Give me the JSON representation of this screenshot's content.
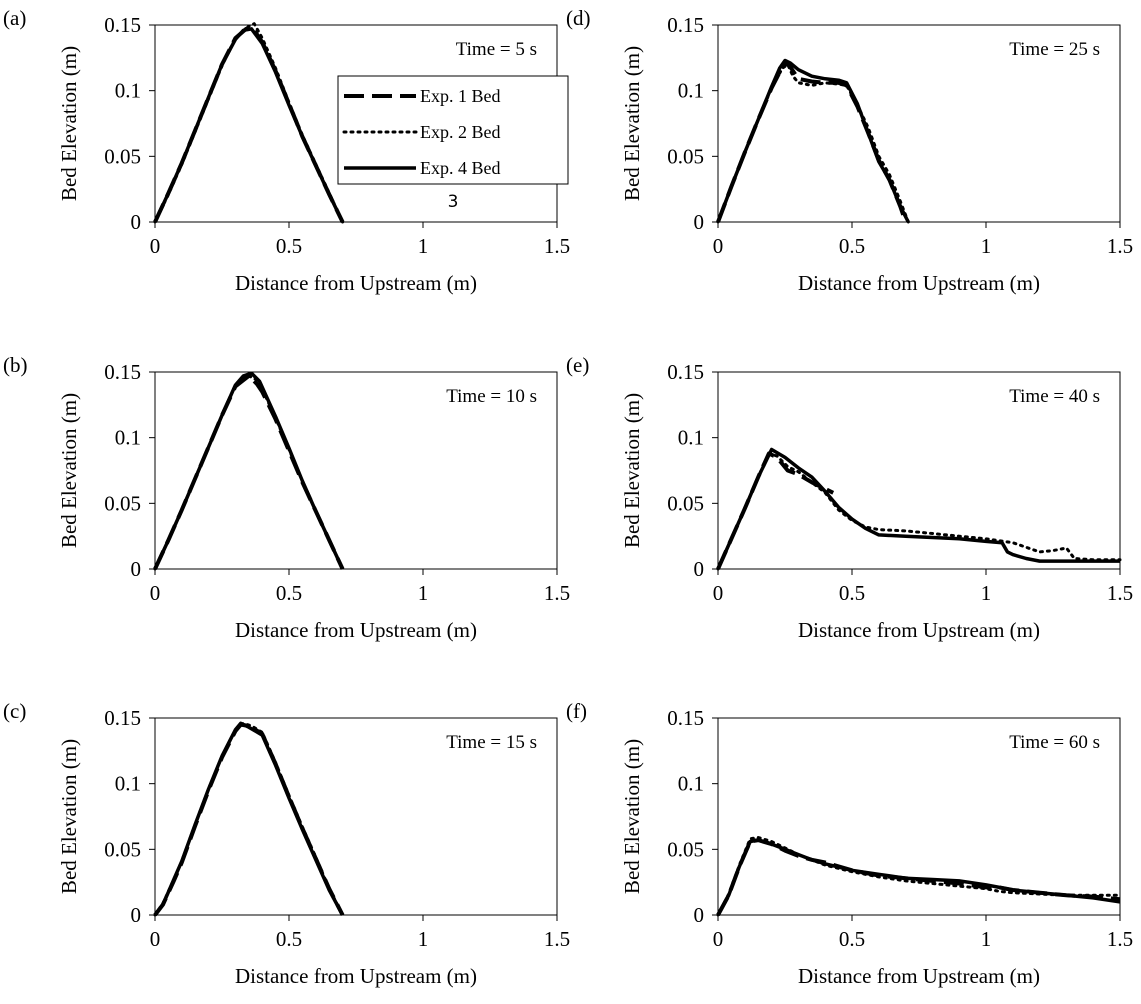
{
  "series_styles": [
    {
      "key": "exp1",
      "stroke": "#000000",
      "width": 4,
      "dash": "20,8"
    },
    {
      "key": "exp2",
      "stroke": "#000000",
      "width": 3,
      "dash": "2,5"
    },
    {
      "key": "exp4",
      "stroke": "#000000",
      "width": 3.5,
      "dash": ""
    }
  ],
  "legend": {
    "entries": [
      "Exp. 1 Bed",
      "Exp. 2 Bed",
      "Exp. 4 Bed"
    ],
    "stray_label": "3"
  },
  "chart_data": [
    {
      "type": "line",
      "panel_letter": "(a)",
      "annotation": "Time = 5 s",
      "xlabel": "Distance from Upstream (m)",
      "ylabel": "Bed Elevation (m)",
      "xlim": [
        0,
        1.5
      ],
      "ylim": [
        0,
        0.15
      ],
      "xticks": [
        "0",
        "0.5",
        "1",
        "1.5"
      ],
      "yticks": [
        "0",
        "0.05",
        "0.1",
        "0.15"
      ],
      "series": [
        {
          "name": "Exp. 1 Bed",
          "x": [
            0,
            0.05,
            0.1,
            0.15,
            0.2,
            0.25,
            0.3,
            0.34,
            0.37,
            0.4,
            0.45,
            0.5,
            0.55,
            0.6,
            0.65,
            0.7
          ],
          "y": [
            0,
            0.022,
            0.045,
            0.07,
            0.095,
            0.12,
            0.14,
            0.147,
            0.146,
            0.137,
            0.115,
            0.09,
            0.065,
            0.043,
            0.021,
            0
          ]
        },
        {
          "name": "Exp. 2 Bed",
          "x": [
            0,
            0.05,
            0.1,
            0.15,
            0.2,
            0.25,
            0.3,
            0.35,
            0.37,
            0.4,
            0.45,
            0.5,
            0.55,
            0.6,
            0.65,
            0.7
          ],
          "y": [
            0,
            0.021,
            0.044,
            0.069,
            0.094,
            0.119,
            0.14,
            0.149,
            0.151,
            0.14,
            0.117,
            0.091,
            0.066,
            0.044,
            0.022,
            0
          ]
        },
        {
          "name": "Exp. 4 Bed",
          "x": [
            0,
            0.05,
            0.1,
            0.15,
            0.2,
            0.25,
            0.3,
            0.33,
            0.36,
            0.4,
            0.45,
            0.5,
            0.55,
            0.6,
            0.65,
            0.7
          ],
          "y": [
            0,
            0.022,
            0.045,
            0.07,
            0.095,
            0.12,
            0.139,
            0.146,
            0.147,
            0.136,
            0.114,
            0.089,
            0.065,
            0.043,
            0.021,
            0
          ]
        }
      ]
    },
    {
      "type": "line",
      "panel_letter": "(b)",
      "annotation": "Time = 10 s",
      "xlabel": "Distance from Upstream (m)",
      "ylabel": "Bed Elevation (m)",
      "xlim": [
        0,
        1.5
      ],
      "ylim": [
        0,
        0.15
      ],
      "xticks": [
        "0",
        "0.5",
        "1",
        "1.5"
      ],
      "yticks": [
        "0",
        "0.05",
        "0.1",
        "0.15"
      ],
      "series": [
        {
          "name": "Exp. 1 Bed",
          "x": [
            0,
            0.05,
            0.1,
            0.15,
            0.2,
            0.25,
            0.3,
            0.35,
            0.38,
            0.4,
            0.45,
            0.5,
            0.55,
            0.6,
            0.65,
            0.7
          ],
          "y": [
            0,
            0.022,
            0.045,
            0.069,
            0.093,
            0.117,
            0.139,
            0.147,
            0.141,
            0.135,
            0.114,
            0.09,
            0.066,
            0.044,
            0.022,
            0
          ]
        },
        {
          "name": "Exp. 2 Bed",
          "x": [
            0,
            0.05,
            0.1,
            0.15,
            0.2,
            0.25,
            0.3,
            0.35,
            0.38,
            0.4,
            0.45,
            0.5,
            0.55,
            0.6,
            0.65,
            0.7
          ],
          "y": [
            0,
            0.022,
            0.045,
            0.069,
            0.093,
            0.117,
            0.14,
            0.147,
            0.144,
            0.137,
            0.115,
            0.091,
            0.067,
            0.044,
            0.022,
            0
          ]
        },
        {
          "name": "Exp. 4 Bed",
          "x": [
            0,
            0.05,
            0.1,
            0.15,
            0.2,
            0.25,
            0.3,
            0.33,
            0.36,
            0.39,
            0.45,
            0.5,
            0.55,
            0.6,
            0.65,
            0.7
          ],
          "y": [
            0,
            0.022,
            0.045,
            0.069,
            0.093,
            0.117,
            0.14,
            0.147,
            0.149,
            0.143,
            0.116,
            0.092,
            0.067,
            0.044,
            0.022,
            0
          ]
        }
      ]
    },
    {
      "type": "line",
      "panel_letter": "(c)",
      "annotation": "Time = 15 s",
      "xlabel": "Distance from Upstream (m)",
      "ylabel": "Bed Elevation (m)",
      "xlim": [
        0,
        1.5
      ],
      "ylim": [
        0,
        0.15
      ],
      "xticks": [
        "0",
        "0.5",
        "1",
        "1.5"
      ],
      "yticks": [
        "0",
        "0.05",
        "0.1",
        "0.15"
      ],
      "series": [
        {
          "name": "Exp. 1 Bed",
          "x": [
            0,
            0.03,
            0.07,
            0.1,
            0.15,
            0.2,
            0.25,
            0.3,
            0.32,
            0.35,
            0.4,
            0.45,
            0.5,
            0.55,
            0.6,
            0.65,
            0.7
          ],
          "y": [
            0,
            0.008,
            0.026,
            0.04,
            0.068,
            0.095,
            0.12,
            0.14,
            0.145,
            0.144,
            0.138,
            0.115,
            0.09,
            0.066,
            0.043,
            0.02,
            0
          ]
        },
        {
          "name": "Exp. 2 Bed",
          "x": [
            0,
            0.03,
            0.07,
            0.1,
            0.15,
            0.2,
            0.25,
            0.3,
            0.33,
            0.36,
            0.4,
            0.45,
            0.5,
            0.55,
            0.6,
            0.65,
            0.7
          ],
          "y": [
            0,
            0.009,
            0.027,
            0.041,
            0.069,
            0.096,
            0.121,
            0.141,
            0.146,
            0.144,
            0.139,
            0.116,
            0.091,
            0.067,
            0.044,
            0.02,
            0
          ]
        },
        {
          "name": "Exp. 4 Bed",
          "x": [
            0,
            0.03,
            0.07,
            0.1,
            0.15,
            0.2,
            0.25,
            0.3,
            0.32,
            0.35,
            0.4,
            0.45,
            0.5,
            0.55,
            0.6,
            0.65,
            0.7
          ],
          "y": [
            0,
            0.008,
            0.027,
            0.041,
            0.069,
            0.096,
            0.121,
            0.141,
            0.146,
            0.143,
            0.137,
            0.114,
            0.089,
            0.065,
            0.042,
            0.019,
            0
          ]
        }
      ]
    },
    {
      "type": "line",
      "panel_letter": "(d)",
      "annotation": "Time = 25 s",
      "xlabel": "Distance from Upstream (m)",
      "ylabel": "Bed Elevation (m)",
      "xlim": [
        0,
        1.5
      ],
      "ylim": [
        0,
        0.15
      ],
      "xticks": [
        "0",
        "0.5",
        "1",
        "1.5"
      ],
      "yticks": [
        "0",
        "0.05",
        "0.1",
        "0.15"
      ],
      "series": [
        {
          "name": "Exp. 1 Bed",
          "x": [
            0,
            0.05,
            0.1,
            0.15,
            0.2,
            0.24,
            0.26,
            0.28,
            0.3,
            0.35,
            0.4,
            0.45,
            0.48,
            0.52,
            0.56,
            0.6,
            0.64,
            0.68,
            0.7
          ],
          "y": [
            0,
            0.027,
            0.053,
            0.078,
            0.102,
            0.118,
            0.121,
            0.115,
            0.109,
            0.107,
            0.106,
            0.106,
            0.104,
            0.088,
            0.068,
            0.047,
            0.032,
            0.012,
            0
          ]
        },
        {
          "name": "Exp. 2 Bed",
          "x": [
            0,
            0.05,
            0.1,
            0.15,
            0.2,
            0.24,
            0.26,
            0.28,
            0.3,
            0.35,
            0.4,
            0.45,
            0.48,
            0.52,
            0.56,
            0.6,
            0.64,
            0.68,
            0.71
          ],
          "y": [
            0,
            0.027,
            0.053,
            0.078,
            0.102,
            0.117,
            0.12,
            0.111,
            0.106,
            0.104,
            0.106,
            0.105,
            0.104,
            0.089,
            0.072,
            0.05,
            0.036,
            0.016,
            0
          ]
        },
        {
          "name": "Exp. 4 Bed",
          "x": [
            0,
            0.05,
            0.1,
            0.15,
            0.2,
            0.23,
            0.25,
            0.27,
            0.3,
            0.35,
            0.4,
            0.45,
            0.48,
            0.52,
            0.56,
            0.6,
            0.64,
            0.68,
            0.71
          ],
          "y": [
            0,
            0.027,
            0.053,
            0.078,
            0.103,
            0.117,
            0.123,
            0.121,
            0.116,
            0.111,
            0.109,
            0.108,
            0.106,
            0.09,
            0.068,
            0.046,
            0.032,
            0.012,
            0
          ]
        }
      ]
    },
    {
      "type": "line",
      "panel_letter": "(e)",
      "annotation": "Time = 40 s",
      "xlabel": "Distance from Upstream (m)",
      "ylabel": "Bed Elevation (m)",
      "xlim": [
        0,
        1.5
      ],
      "ylim": [
        0,
        0.15
      ],
      "xticks": [
        "0",
        "0.5",
        "1",
        "1.5"
      ],
      "yticks": [
        "0",
        "0.05",
        "0.1",
        "0.15"
      ],
      "series": [
        {
          "name": "Exp. 1 Bed",
          "x": [
            0,
            0.05,
            0.1,
            0.15,
            0.19,
            0.22,
            0.26,
            0.3,
            0.35,
            0.4,
            0.43
          ],
          "y": [
            0,
            0.023,
            0.046,
            0.07,
            0.088,
            0.085,
            0.075,
            0.072,
            0.066,
            0.061,
            0.058
          ]
        },
        {
          "name": "Exp. 2 Bed",
          "x": [
            0,
            0.05,
            0.1,
            0.15,
            0.19,
            0.22,
            0.26,
            0.3,
            0.35,
            0.4,
            0.45,
            0.5,
            0.55,
            0.6,
            0.7,
            0.8,
            0.9,
            1.0,
            1.1,
            1.2,
            1.25,
            1.3,
            1.33,
            1.4,
            1.45,
            1.5
          ],
          "y": [
            0,
            0.023,
            0.046,
            0.07,
            0.088,
            0.086,
            0.078,
            0.074,
            0.066,
            0.058,
            0.045,
            0.037,
            0.032,
            0.03,
            0.029,
            0.027,
            0.025,
            0.023,
            0.02,
            0.013,
            0.014,
            0.016,
            0.008,
            0.007,
            0.007,
            0.007
          ]
        },
        {
          "name": "Exp. 4 Bed",
          "x": [
            0,
            0.05,
            0.1,
            0.15,
            0.2,
            0.25,
            0.3,
            0.35,
            0.4,
            0.45,
            0.5,
            0.55,
            0.6,
            0.7,
            0.8,
            0.9,
            1.0,
            1.06,
            1.08,
            1.1,
            1.15,
            1.2,
            1.3,
            1.4,
            1.5
          ],
          "y": [
            0,
            0.023,
            0.046,
            0.07,
            0.091,
            0.085,
            0.077,
            0.07,
            0.059,
            0.047,
            0.038,
            0.031,
            0.026,
            0.025,
            0.024,
            0.023,
            0.021,
            0.02,
            0.013,
            0.011,
            0.008,
            0.006,
            0.006,
            0.006,
            0.006
          ]
        }
      ]
    },
    {
      "type": "line",
      "panel_letter": "(f)",
      "annotation": "Time = 60 s",
      "xlabel": "Distance from Upstream (m)",
      "ylabel": "Bed Elevation (m)",
      "xlim": [
        0,
        1.5
      ],
      "ylim": [
        0,
        0.15
      ],
      "xticks": [
        "0",
        "0.5",
        "1",
        "1.5"
      ],
      "yticks": [
        "0",
        "0.05",
        "0.1",
        "0.15"
      ],
      "series": [
        {
          "name": "Exp. 1 Bed",
          "x": [
            0,
            0.04,
            0.08,
            0.12,
            0.15,
            0.2,
            0.25,
            0.3,
            0.35,
            0.4,
            0.5,
            0.6,
            0.7,
            0.8,
            0.9,
            1.0,
            1.05,
            1.1,
            1.2,
            1.3,
            1.4,
            1.5
          ],
          "y": [
            0,
            0.015,
            0.037,
            0.056,
            0.057,
            0.054,
            0.049,
            0.045,
            0.042,
            0.04,
            0.034,
            0.03,
            0.028,
            0.026,
            0.024,
            0.021,
            0.021,
            0.019,
            0.017,
            0.015,
            0.014,
            0.012
          ]
        },
        {
          "name": "Exp. 2 Bed",
          "x": [
            0,
            0.04,
            0.08,
            0.12,
            0.15,
            0.2,
            0.25,
            0.3,
            0.35,
            0.4,
            0.5,
            0.6,
            0.7,
            0.8,
            0.9,
            1.0,
            1.05,
            1.1,
            1.2,
            1.3,
            1.4,
            1.5
          ],
          "y": [
            0,
            0.016,
            0.038,
            0.058,
            0.059,
            0.056,
            0.051,
            0.046,
            0.042,
            0.038,
            0.033,
            0.029,
            0.026,
            0.024,
            0.022,
            0.02,
            0.018,
            0.017,
            0.016,
            0.015,
            0.015,
            0.015
          ]
        },
        {
          "name": "Exp. 4 Bed",
          "x": [
            0,
            0.04,
            0.08,
            0.12,
            0.15,
            0.2,
            0.25,
            0.3,
            0.35,
            0.4,
            0.5,
            0.6,
            0.7,
            0.8,
            0.9,
            1.0,
            1.05,
            1.1,
            1.2,
            1.3,
            1.4,
            1.5
          ],
          "y": [
            0,
            0.015,
            0.037,
            0.056,
            0.057,
            0.054,
            0.05,
            0.046,
            0.042,
            0.039,
            0.034,
            0.031,
            0.028,
            0.027,
            0.026,
            0.023,
            0.021,
            0.019,
            0.017,
            0.015,
            0.013,
            0.01
          ]
        }
      ]
    }
  ]
}
